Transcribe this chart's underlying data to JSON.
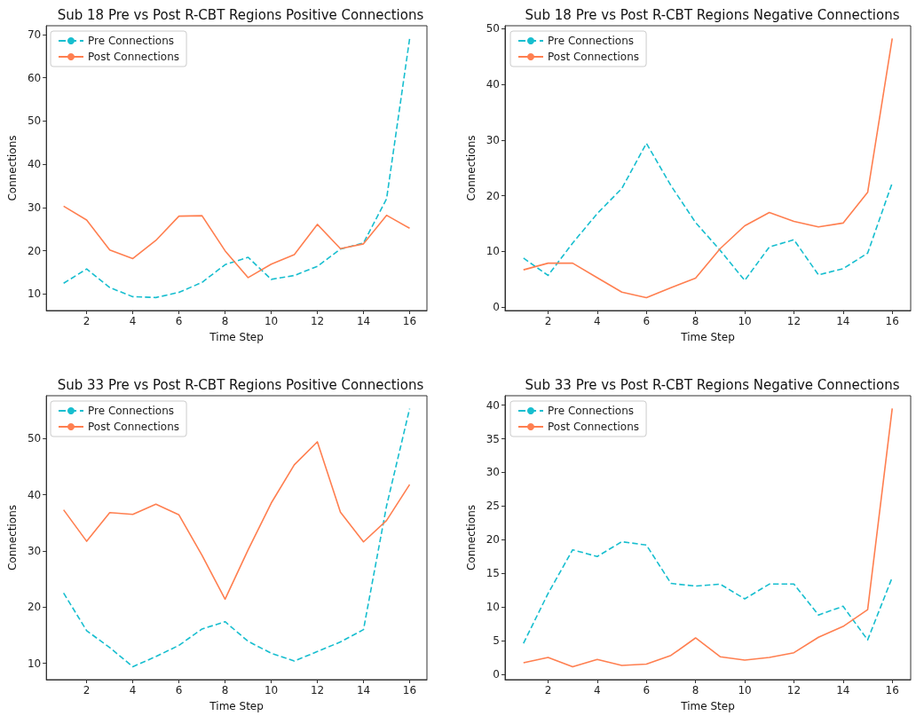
{
  "chart_data": [
    {
      "type": "line",
      "title": "Sub 18 Pre vs Post R-CBT Regions Positive Connections",
      "xlabel": "Time Step",
      "ylabel": "Connections",
      "x": [
        1,
        2,
        3,
        4,
        5,
        6,
        7,
        8,
        9,
        10,
        11,
        12,
        13,
        14,
        15,
        16
      ],
      "xlim": [
        0.25,
        16.75
      ],
      "xticks": [
        2,
        4,
        6,
        8,
        10,
        12,
        14,
        16
      ],
      "ylim": [
        6.2,
        72.0
      ],
      "yticks": [
        10,
        20,
        30,
        40,
        50,
        60,
        70
      ],
      "legend": "top left",
      "grid": false,
      "series": [
        {
          "name": "Pre Connections",
          "color": "#17becf",
          "line_style": "dashed",
          "values": [
            12.5,
            15.8,
            11.5,
            9.4,
            9.2,
            10.4,
            12.7,
            16.8,
            18.5,
            13.4,
            14.3,
            16.4,
            20.4,
            21.8,
            32,
            69
          ]
        },
        {
          "name": "Post Connections",
          "color": "#ff7f50",
          "line_style": "solid",
          "values": [
            30.3,
            27.1,
            20.2,
            18.2,
            22.4,
            28,
            28.1,
            20,
            13.8,
            16.9,
            19.1,
            26.1,
            20.5,
            21.6,
            28.2,
            25.2
          ]
        }
      ]
    },
    {
      "type": "line",
      "title": "Sub 18 Pre vs Post R-CBT Regions Negative Connections",
      "xlabel": "Time Step",
      "ylabel": "Connections",
      "x": [
        1,
        2,
        3,
        4,
        5,
        6,
        7,
        8,
        9,
        10,
        11,
        12,
        13,
        14,
        15,
        16
      ],
      "xlim": [
        0.25,
        16.75
      ],
      "xticks": [
        2,
        4,
        6,
        8,
        10,
        12,
        14,
        16
      ],
      "ylim": [
        -0.6,
        50.5
      ],
      "yticks": [
        0,
        10,
        20,
        30,
        40,
        50
      ],
      "legend": "top left",
      "grid": false,
      "series": [
        {
          "name": "Pre Connections",
          "color": "#17becf",
          "line_style": "dashed",
          "values": [
            8.8,
            5.7,
            11.5,
            16.8,
            21.3,
            29.4,
            21.8,
            15.2,
            10.2,
            4.8,
            10.8,
            12.1,
            5.8,
            6.9,
            9.7,
            22.3
          ]
        },
        {
          "name": "Post Connections",
          "color": "#ff7f50",
          "line_style": "solid",
          "values": [
            6.7,
            7.9,
            7.9,
            5.3,
            2.7,
            1.7,
            3.5,
            5.2,
            10.5,
            14.6,
            17,
            15.4,
            14.4,
            15.1,
            20.6,
            48.2
          ]
        }
      ]
    },
    {
      "type": "line",
      "title": "Sub 33 Pre vs Post R-CBT Regions Positive Connections",
      "xlabel": "Time Step",
      "ylabel": "Connections",
      "x": [
        1,
        2,
        3,
        4,
        5,
        6,
        7,
        8,
        9,
        10,
        11,
        12,
        13,
        14,
        15,
        16
      ],
      "xlim": [
        0.25,
        16.75
      ],
      "xticks": [
        2,
        4,
        6,
        8,
        10,
        12,
        14,
        16
      ],
      "ylim": [
        7.1,
        57.6
      ],
      "yticks": [
        10,
        20,
        30,
        40,
        50
      ],
      "legend": "top left",
      "grid": false,
      "series": [
        {
          "name": "Pre Connections",
          "color": "#17becf",
          "line_style": "dashed",
          "values": [
            22.5,
            15.8,
            12.8,
            9.4,
            11.2,
            13.2,
            16.1,
            17.4,
            13.9,
            11.8,
            10.4,
            12.1,
            13.8,
            16,
            38,
            55.3
          ]
        },
        {
          "name": "Post Connections",
          "color": "#ff7f50",
          "line_style": "solid",
          "values": [
            37.3,
            31.7,
            36.8,
            36.5,
            38.3,
            36.4,
            29.2,
            21.4,
            30.2,
            38.5,
            45.3,
            49.4,
            36.9,
            31.6,
            35.4,
            41.8
          ]
        }
      ]
    },
    {
      "type": "line",
      "title": "Sub 33 Pre vs Post R-CBT Regions Negative Connections",
      "xlabel": "Time Step",
      "ylabel": "Connections",
      "x": [
        1,
        2,
        3,
        4,
        5,
        6,
        7,
        8,
        9,
        10,
        11,
        12,
        13,
        14,
        15,
        16
      ],
      "xlim": [
        0.25,
        16.75
      ],
      "xticks": [
        2,
        4,
        6,
        8,
        10,
        12,
        14,
        16
      ],
      "ylim": [
        -0.8,
        41.4
      ],
      "yticks": [
        0,
        5,
        10,
        15,
        20,
        25,
        30,
        35,
        40
      ],
      "legend": "top left",
      "grid": false,
      "series": [
        {
          "name": "Pre Connections",
          "color": "#17becf",
          "line_style": "dashed",
          "values": [
            4.6,
            12,
            18.5,
            17.5,
            19.7,
            19.2,
            13.5,
            13.1,
            13.4,
            11.2,
            13.4,
            13.4,
            8.8,
            10.1,
            5.1,
            14.4
          ]
        },
        {
          "name": "Post Connections",
          "color": "#ff7f50",
          "line_style": "solid",
          "values": [
            1.7,
            2.5,
            1.1,
            2.2,
            1.3,
            1.5,
            2.8,
            5.4,
            2.6,
            2.1,
            2.5,
            3.2,
            5.5,
            7.1,
            9.6,
            39.5
          ]
        }
      ]
    }
  ]
}
